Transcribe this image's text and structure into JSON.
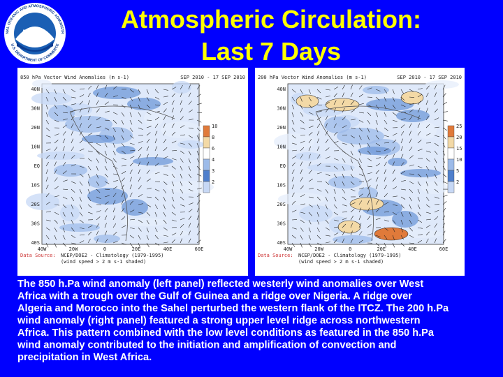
{
  "header": {
    "title_lines": [
      "Atmospheric Circulation:",
      "Last 7 Days"
    ],
    "logo": {
      "name": "NOAA",
      "ring_top": "NATIONAL OCEANIC AND ATMOSPHERIC ADMINISTRATION",
      "ring_bottom": "U.S. DEPARTMENT OF COMMERCE"
    }
  },
  "panels": [
    {
      "title": "850 hPa Vector Wind Anomalies (m s-1)",
      "period": "SEP 2010 - 17 SEP 2010",
      "source_label": "Data Source:",
      "source": "NCEP/DOE2 - Climatology (1979-1995)",
      "shading": "(wind speed > 2 m s-1 shaded)",
      "colorbar": [
        "10",
        "8",
        "6",
        "4",
        "3",
        "2"
      ]
    },
    {
      "title": "200 hPa Vector Wind Anomalies (m s-1)",
      "period": "SEP 2010 - 17 SEP 2010",
      "source_label": "Data Source:",
      "source": "NCEP/DOE2 - Climatology (1979-1995)",
      "shading": "(wind speed > 2 m s-1 shaded)",
      "colorbar": [
        "25",
        "20",
        "15",
        "10",
        "5",
        "2"
      ]
    }
  ],
  "lat_labels": [
    "40N",
    "30N",
    "20N",
    "10N",
    "EQ",
    "10S",
    "20S",
    "30S",
    "40S"
  ],
  "lon_labels": [
    "40W",
    "20W",
    "0",
    "20E",
    "40E",
    "60E"
  ],
  "body": {
    "lines": [
      "The 850 h.Pa wind anomaly (left panel) reflected westerly wind anomalies over West",
      "Africa with a trough over the Gulf of Guinea and a ridge over Nigeria. A ridge over",
      "Algeria and Morocco into the Sahel perturbed the western flank of the ITCZ. The 200 h.Pa",
      "wind anomaly (right panel) featured a strong upper level ridge across northwestern",
      "Africa. This pattern combined with the low level conditions as featured in the 850 h.Pa",
      "wind anomaly contributed to the initiation and amplification of  convection and",
      "precipitation in West Africa."
    ]
  }
}
